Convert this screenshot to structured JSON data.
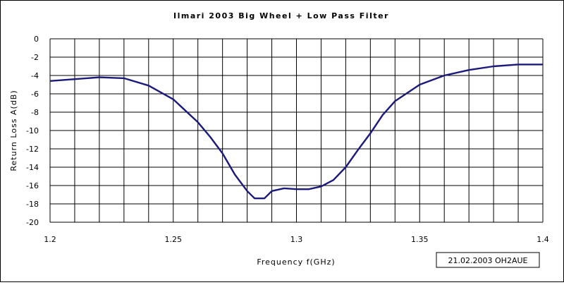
{
  "chart_data": {
    "type": "line",
    "title": "Ilmari 2003 Big Wheel + Low Pass Filter",
    "xlabel": "Frequency f(GHz)",
    "ylabel": "Return Loss A(dB)",
    "xlim": [
      1.2,
      1.4
    ],
    "ylim": [
      -20,
      0
    ],
    "x_ticks": [
      1.2,
      1.25,
      1.3,
      1.35,
      1.4
    ],
    "x_tick_labels": [
      "1.2",
      "1.25",
      "1.3",
      "1.35",
      "1.4"
    ],
    "y_ticks": [
      0,
      -2,
      -4,
      -6,
      -8,
      -10,
      -12,
      -14,
      -16,
      -18,
      -20
    ],
    "y_tick_labels": [
      "0",
      "-2",
      "-4",
      "-6",
      "-8",
      "-10",
      "-12",
      "-14",
      "-16",
      "-18",
      "-20"
    ],
    "grid": true,
    "legend": "none",
    "line_color": "#1a1a7a",
    "annotation": "21.02.2003 OH2AUE",
    "series": [
      {
        "x": [
          1.2,
          1.21,
          1.22,
          1.23,
          1.24,
          1.25,
          1.26,
          1.265,
          1.27,
          1.275,
          1.28,
          1.283,
          1.287,
          1.29,
          1.295,
          1.3,
          1.305,
          1.31,
          1.315,
          1.32,
          1.325,
          1.33,
          1.335,
          1.34,
          1.35,
          1.36,
          1.37,
          1.38,
          1.39,
          1.4
        ],
        "y": [
          -4.6,
          -4.4,
          -4.2,
          -4.3,
          -5.1,
          -6.6,
          -9.1,
          -10.7,
          -12.5,
          -14.8,
          -16.6,
          -17.4,
          -17.4,
          -16.6,
          -16.3,
          -16.4,
          -16.4,
          -16.1,
          -15.4,
          -14.0,
          -12.1,
          -10.3,
          -8.3,
          -6.8,
          -5.0,
          -4.0,
          -3.4,
          -3.0,
          -2.8,
          -2.8
        ]
      }
    ]
  }
}
